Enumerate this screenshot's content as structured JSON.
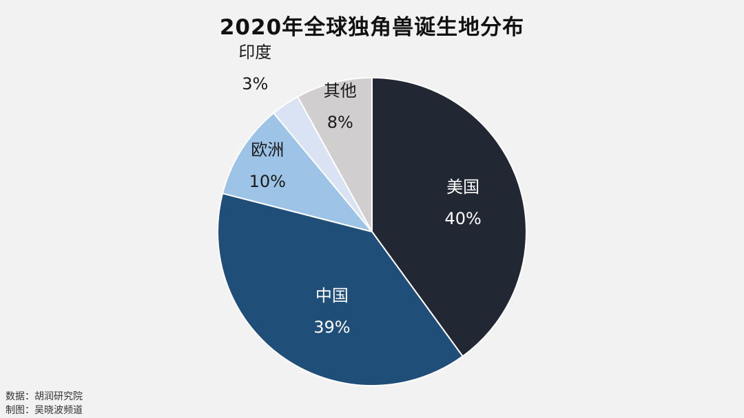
{
  "chart_data": {
    "type": "pie",
    "title": "2020年全球独角兽诞生地分布",
    "start_angle": "12 o'clock",
    "direction": "clockwise",
    "slices": [
      {
        "label": "美国",
        "value": 40,
        "value_label": "40%",
        "color": "#222833",
        "text_color": "#ffffff"
      },
      {
        "label": "中国",
        "value": 39,
        "value_label": "39%",
        "color": "#1f4e79",
        "text_color": "#ffffff"
      },
      {
        "label": "欧洲",
        "value": 10,
        "value_label": "10%",
        "color": "#9dc3e6",
        "text_color": "#1a1a1a"
      },
      {
        "label": "印度",
        "value": 3,
        "value_label": "3%",
        "color": "#dae3f3",
        "text_color": "#1a1a1a"
      },
      {
        "label": "其他",
        "value": 8,
        "value_label": "8%",
        "color": "#d0cece",
        "text_color": "#1a1a1a"
      }
    ]
  },
  "footer": {
    "source": "数据：胡润研究院",
    "credit": "制图：吴晓波频道"
  }
}
